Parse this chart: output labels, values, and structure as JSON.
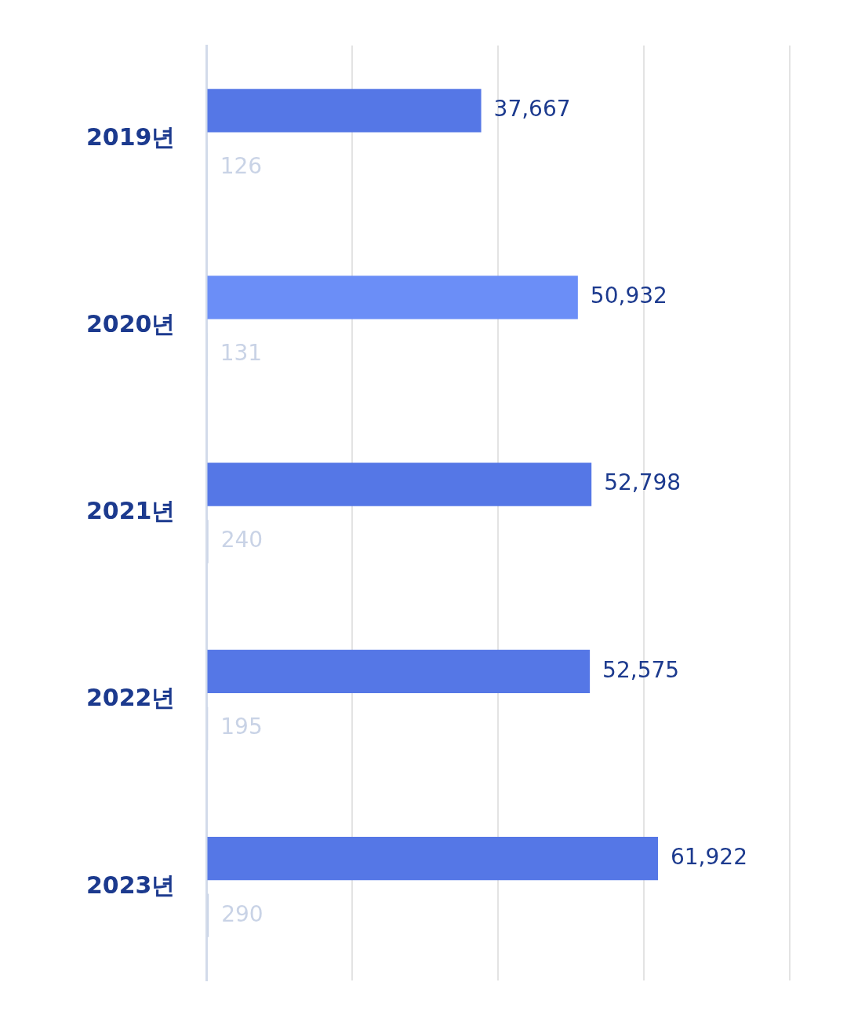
{
  "chart_data": {
    "type": "bar",
    "orientation": "horizontal",
    "categories": [
      "2019년",
      "2020년",
      "2021년",
      "2022년",
      "2023년"
    ],
    "series": [
      {
        "color": "#5577e6",
        "colors": [
          "#5577e6",
          "#6b8ef7",
          "#5577e6",
          "#5577e6",
          "#5577e6"
        ],
        "values": [
          37667,
          50932,
          52798,
          52575,
          61922
        ],
        "value_labels": [
          "37,667",
          "50,932",
          "52,798",
          "52,575",
          "61,922"
        ]
      },
      {
        "color": "#c9d3e6",
        "values": [
          126,
          131,
          240,
          195,
          290
        ],
        "value_labels": [
          "126",
          "131",
          "240",
          "195",
          "290"
        ]
      }
    ],
    "xlim": [
      0,
      80000
    ],
    "xticks": [
      {
        "value": 0,
        "label": null
      },
      {
        "value": 20000,
        "label": null
      },
      {
        "value": 40000,
        "label": null
      },
      {
        "value": 60000,
        "label": null
      },
      {
        "value": 80000,
        "label": null
      }
    ],
    "tick_labels": "y",
    "grid": "x",
    "legend": false
  }
}
